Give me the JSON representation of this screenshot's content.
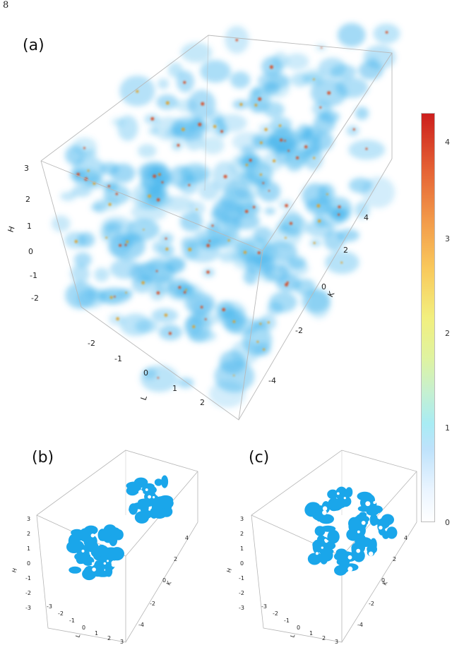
{
  "page_marker": "8",
  "panels": [
    {
      "label": "(a)"
    },
    {
      "label": "(b)"
    },
    {
      "label": "(c)"
    }
  ],
  "axes": {
    "h_label": "H",
    "l_label": "L",
    "k_label": "K",
    "a_h_ticks": [
      "3",
      "2",
      "1",
      "0",
      "-1",
      "-2"
    ],
    "a_l_ticks": [
      "-2",
      "-1",
      "0",
      "1",
      "2"
    ],
    "a_k_ticks": [
      "4",
      "2",
      "0",
      "-2",
      "-4"
    ],
    "small_h_ticks": [
      "3",
      "2",
      "1",
      "0",
      "-1",
      "-2",
      "-3"
    ],
    "small_l_ticks": [
      "-3",
      "-2",
      "-1",
      "0",
      "1",
      "2",
      "3"
    ],
    "small_k_ticks": [
      "4",
      "2",
      "0",
      "-2",
      "-4"
    ]
  },
  "colorbar": {
    "ticks": [
      "4",
      "3",
      "2",
      "1",
      "0"
    ],
    "range": [
      0,
      4.4
    ],
    "colors": [
      "#ffffff",
      "#bde2fb",
      "#a8ecf4",
      "#dff3a0",
      "#f2ef7e",
      "#f2994a",
      "#cc1f1d"
    ]
  },
  "colors": {
    "blob": "#3fb2ec",
    "solid": "#1aa6ea",
    "hot": "#d9481c"
  }
}
